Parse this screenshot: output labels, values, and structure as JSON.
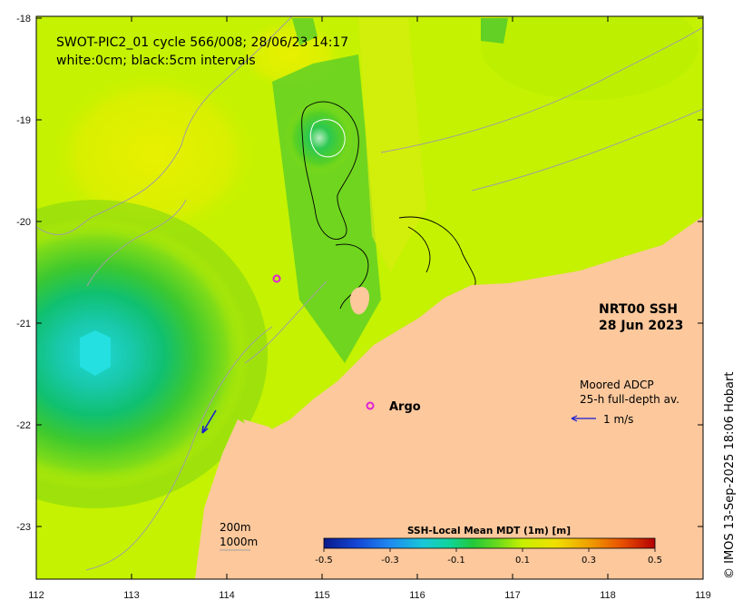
{
  "title_line1": "SWOT-PIC2_01 cycle 566/008; 28/06/23 14:17",
  "title_line2": "white:0cm; black:5cm intervals",
  "product_label": "NRT00 SSH",
  "product_date": "28 Jun 2023",
  "adcp_label_1": "Moored ADCP",
  "adcp_label_2": "25-h full-depth av.",
  "adcp_scale_label": "1 m/s",
  "argo_label": "Argo",
  "isobath_200": "200m",
  "isobath_1000": "1000m",
  "copyright": "© IMOS 13-Sep-2025 18:06 Hobart",
  "colorbar": {
    "title": "SSH-Local Mean MDT (1m) [m]",
    "ticks": [
      "-0.5",
      "-0.3",
      "-0.1",
      "0.1",
      "0.3",
      "0.5"
    ],
    "min": -0.5,
    "max": 0.5,
    "colors": [
      "#0a1a8a",
      "#1446d6",
      "#1e8af0",
      "#18c8d8",
      "#10d49a",
      "#22c83a",
      "#66d81e",
      "#c8f000",
      "#f0e000",
      "#f0a000",
      "#e85000",
      "#b40000"
    ]
  },
  "x_ticks": [
    "112",
    "113",
    "114",
    "115",
    "116",
    "117",
    "118",
    "119"
  ],
  "y_ticks": [
    "-18",
    "-19",
    "-20",
    "-21",
    "-22",
    "-23"
  ],
  "colors": {
    "land": "#fcc89c",
    "ocean_base": "#c4f200",
    "argo_marker": "#e020d8",
    "adcp_arrow": "#1a1ad0"
  },
  "chart_data": {
    "type": "map",
    "lon_range": [
      112,
      119
    ],
    "lat_range": [
      -23.55,
      -18
    ],
    "argo_floats": [
      {
        "lon": 114.5,
        "lat": -20.55
      },
      {
        "lon": 115.5,
        "lat": -21.82
      }
    ],
    "adcp_vectors": [
      {
        "lon": 113.78,
        "lat": -21.85,
        "u": -0.35,
        "v": -0.55
      }
    ]
  }
}
